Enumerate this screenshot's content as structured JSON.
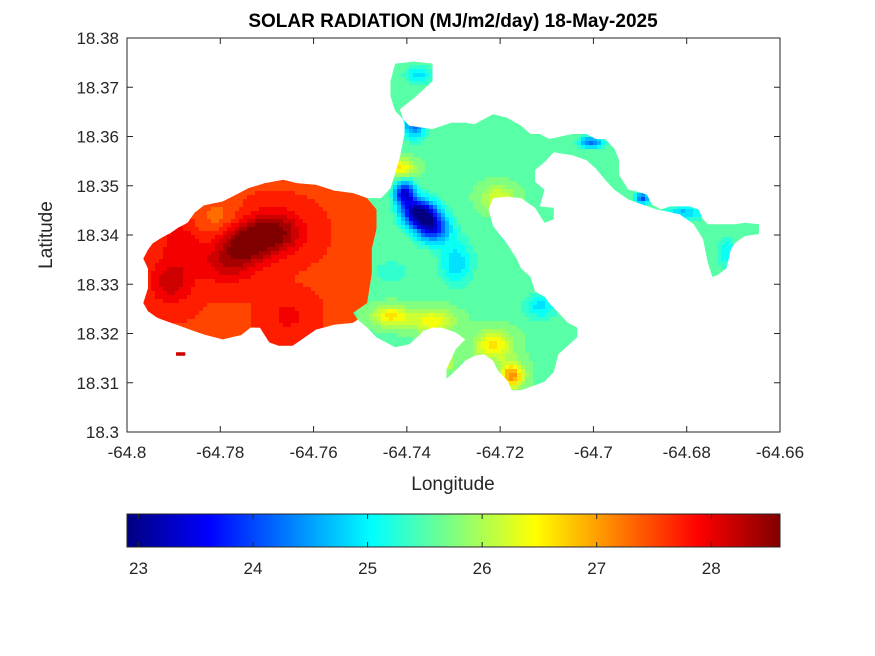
{
  "chart_data": {
    "type": "heatmap",
    "title": "SOLAR RADIATION (MJ/m2/day) 18-May-2025",
    "xlabel": "Longitude",
    "ylabel": "Latitude",
    "xlim": [
      -64.8,
      -64.66
    ],
    "ylim": [
      18.3,
      18.38
    ],
    "x_ticks": [
      -64.8,
      -64.78,
      -64.76,
      -64.74,
      -64.72,
      -64.7,
      -64.68,
      -64.66
    ],
    "x_tick_labels": [
      "-64.8",
      "-64.78",
      "-64.76",
      "-64.74",
      "-64.72",
      "-64.7",
      "-64.68",
      "-64.66"
    ],
    "y_ticks": [
      18.3,
      18.31,
      18.32,
      18.33,
      18.34,
      18.35,
      18.36,
      18.37,
      18.38
    ],
    "y_tick_labels": [
      "18.3",
      "18.31",
      "18.32",
      "18.33",
      "18.34",
      "18.35",
      "18.36",
      "18.37",
      "18.38"
    ],
    "colormap": "jet",
    "colorbar": {
      "range": [
        22.9,
        28.6
      ],
      "ticks": [
        23,
        24,
        25,
        26,
        27,
        28
      ],
      "tick_labels": [
        "23",
        "24",
        "25",
        "26",
        "27",
        "28"
      ],
      "placement": "bottom"
    },
    "grid": false,
    "regions": [
      {
        "name": "west",
        "polygon": [
          [
            -64.7955,
            18.337
          ],
          [
            -64.7945,
            18.3383
          ],
          [
            -64.7925,
            18.3395
          ],
          [
            -64.7905,
            18.3405
          ],
          [
            -64.789,
            18.3415
          ],
          [
            -64.787,
            18.3425
          ],
          [
            -64.7855,
            18.3445
          ],
          [
            -64.7835,
            18.346
          ],
          [
            -64.7795,
            18.3468
          ],
          [
            -64.777,
            18.348
          ],
          [
            -64.774,
            18.3495
          ],
          [
            -64.7705,
            18.3505
          ],
          [
            -64.7665,
            18.3512
          ],
          [
            -64.7635,
            18.3505
          ],
          [
            -64.7595,
            18.3502
          ],
          [
            -64.7555,
            18.349
          ],
          [
            -64.7515,
            18.3485
          ],
          [
            -64.7485,
            18.3475
          ],
          [
            -64.7465,
            18.3452
          ],
          [
            -64.7465,
            18.3412
          ],
          [
            -64.7475,
            18.3372
          ],
          [
            -64.7475,
            18.3322
          ],
          [
            -64.7485,
            18.3262
          ],
          [
            -64.7495,
            18.3235
          ],
          [
            -64.7515,
            18.3222
          ],
          [
            -64.7555,
            18.3218
          ],
          [
            -64.7595,
            18.3208
          ],
          [
            -64.7625,
            18.3188
          ],
          [
            -64.7645,
            18.3175
          ],
          [
            -64.7675,
            18.3175
          ],
          [
            -64.7695,
            18.3182
          ],
          [
            -64.7715,
            18.3212
          ],
          [
            -64.7735,
            18.3212
          ],
          [
            -64.7755,
            18.3197
          ],
          [
            -64.7795,
            18.3188
          ],
          [
            -64.7835,
            18.3198
          ],
          [
            -64.7865,
            18.3208
          ],
          [
            -64.7885,
            18.3215
          ],
          [
            -64.7915,
            18.3225
          ],
          [
            -64.7935,
            18.3232
          ],
          [
            -64.7955,
            18.3245
          ],
          [
            -64.7965,
            18.3262
          ],
          [
            -64.7955,
            18.3292
          ],
          [
            -64.7955,
            18.3332
          ],
          [
            -64.7965,
            18.3352
          ]
        ],
        "peaks": [
          [
            -64.7685,
            18.3405,
            28.6,
            0.006,
            0.0042
          ],
          [
            -64.7745,
            18.3385,
            28.5,
            0.0052,
            0.0038
          ],
          [
            -64.7905,
            18.3305,
            28.2,
            0.0045,
            0.0045
          ],
          [
            -64.7885,
            18.3385,
            28.0,
            0.004,
            0.004
          ],
          [
            -64.7655,
            18.3235,
            27.9,
            0.0045,
            0.004
          ],
          [
            -64.7785,
            18.3345,
            28.2,
            0.0062,
            0.0042
          ],
          [
            -64.7595,
            18.3465,
            27.6,
            0.0052,
            0.004
          ],
          [
            -64.7805,
            18.3435,
            27.3,
            0.0045,
            0.0038
          ]
        ],
        "base": 27.6
      },
      {
        "name": "southwest-islet",
        "polygon": [
          [
            -64.7895,
            18.3162
          ],
          [
            -64.7875,
            18.3162
          ],
          [
            -64.7875,
            18.3155
          ],
          [
            -64.7895,
            18.3155
          ]
        ],
        "peaks": [],
        "base": 28.2
      },
      {
        "name": "central",
        "polygon": [
          [
            -64.7485,
            18.3475
          ],
          [
            -64.7455,
            18.3475
          ],
          [
            -64.7435,
            18.3495
          ],
          [
            -64.7425,
            18.3525
          ],
          [
            -64.7415,
            18.3558
          ],
          [
            -64.7405,
            18.3605
          ],
          [
            -64.7405,
            18.3625
          ],
          [
            -64.7415,
            18.3655
          ],
          [
            -64.7385,
            18.3678
          ],
          [
            -64.7365,
            18.3695
          ],
          [
            -64.7345,
            18.3712
          ],
          [
            -64.7345,
            18.3748
          ],
          [
            -64.7385,
            18.3752
          ],
          [
            -64.7425,
            18.3748
          ],
          [
            -64.7435,
            18.3712
          ],
          [
            -64.7435,
            18.3682
          ],
          [
            -64.7425,
            18.3652
          ],
          [
            -64.7395,
            18.3622
          ],
          [
            -64.7345,
            18.3615
          ],
          [
            -64.7305,
            18.3628
          ],
          [
            -64.7275,
            18.3628
          ],
          [
            -64.7255,
            18.3625
          ],
          [
            -64.7215,
            18.3645
          ],
          [
            -64.7185,
            18.3638
          ],
          [
            -64.7155,
            18.3622
          ],
          [
            -64.7135,
            18.3605
          ],
          [
            -64.7115,
            18.3605
          ],
          [
            -64.7095,
            18.3595
          ],
          [
            -64.7045,
            18.3605
          ],
          [
            -64.7015,
            18.3605
          ],
          [
            -64.6995,
            18.3595
          ],
          [
            -64.6975,
            18.3595
          ],
          [
            -64.6955,
            18.3575
          ],
          [
            -64.6945,
            18.3552
          ],
          [
            -64.6945,
            18.3522
          ],
          [
            -64.6925,
            18.3492
          ],
          [
            -64.6905,
            18.3488
          ],
          [
            -64.6885,
            18.3482
          ],
          [
            -64.6875,
            18.3462
          ],
          [
            -64.6855,
            18.3452
          ],
          [
            -64.6835,
            18.3458
          ],
          [
            -64.6795,
            18.3458
          ],
          [
            -64.6775,
            18.3452
          ],
          [
            -64.6765,
            18.3432
          ],
          [
            -64.6755,
            18.3422
          ],
          [
            -64.6735,
            18.3422
          ],
          [
            -64.6695,
            18.3422
          ],
          [
            -64.6675,
            18.3425
          ],
          [
            -64.6645,
            18.3422
          ],
          [
            -64.6645,
            18.3402
          ],
          [
            -64.6675,
            18.3398
          ],
          [
            -64.6695,
            18.3385
          ],
          [
            -64.6705,
            18.3372
          ],
          [
            -64.6715,
            18.3332
          ],
          [
            -64.6735,
            18.3318
          ],
          [
            -64.6745,
            18.3315
          ],
          [
            -64.6755,
            18.3345
          ],
          [
            -64.6765,
            18.3392
          ],
          [
            -64.6785,
            18.3422
          ],
          [
            -64.6815,
            18.3442
          ],
          [
            -64.6865,
            18.3452
          ],
          [
            -64.6895,
            18.3462
          ],
          [
            -64.6925,
            18.3472
          ],
          [
            -64.6955,
            18.3492
          ],
          [
            -64.6975,
            18.3512
          ],
          [
            -64.6995,
            18.3535
          ],
          [
            -64.7015,
            18.3552
          ],
          [
            -64.7045,
            18.3562
          ],
          [
            -64.7085,
            18.3568
          ],
          [
            -64.7105,
            18.3548
          ],
          [
            -64.7125,
            18.3532
          ],
          [
            -64.7125,
            18.3508
          ],
          [
            -64.7105,
            18.3492
          ],
          [
            -64.7115,
            18.3458
          ],
          [
            -64.7085,
            18.3455
          ],
          [
            -64.7085,
            18.3432
          ],
          [
            -64.7105,
            18.3425
          ],
          [
            -64.7125,
            18.3455
          ],
          [
            -64.7155,
            18.3475
          ],
          [
            -64.7185,
            18.3478
          ],
          [
            -64.7215,
            18.3475
          ],
          [
            -64.7225,
            18.3452
          ],
          [
            -64.7215,
            18.3418
          ],
          [
            -64.7185,
            18.3382
          ],
          [
            -64.7165,
            18.3352
          ],
          [
            -64.7155,
            18.3332
          ],
          [
            -64.7135,
            18.3315
          ],
          [
            -64.7125,
            18.3285
          ],
          [
            -64.7105,
            18.3275
          ],
          [
            -64.7095,
            18.3262
          ],
          [
            -64.7075,
            18.3242
          ],
          [
            -64.7055,
            18.3222
          ],
          [
            -64.7035,
            18.3212
          ],
          [
            -64.7035,
            18.3192
          ],
          [
            -64.7055,
            18.3175
          ],
          [
            -64.7075,
            18.3158
          ],
          [
            -64.7085,
            18.3122
          ],
          [
            -64.7105,
            18.3102
          ],
          [
            -64.7125,
            18.3095
          ],
          [
            -64.7155,
            18.3085
          ],
          [
            -64.7175,
            18.3085
          ],
          [
            -64.7185,
            18.3105
          ],
          [
            -64.7205,
            18.3125
          ],
          [
            -64.7215,
            18.3145
          ],
          [
            -64.7235,
            18.3158
          ],
          [
            -64.7255,
            18.3155
          ],
          [
            -64.7275,
            18.3145
          ],
          [
            -64.7295,
            18.3125
          ],
          [
            -64.7315,
            18.3108
          ],
          [
            -64.7315,
            18.3128
          ],
          [
            -64.7305,
            18.3148
          ],
          [
            -64.7295,
            18.3168
          ],
          [
            -64.7275,
            18.3188
          ],
          [
            -64.7295,
            18.3202
          ],
          [
            -64.7325,
            18.3212
          ],
          [
            -64.7345,
            18.3212
          ],
          [
            -64.7365,
            18.3205
          ],
          [
            -64.7375,
            18.3195
          ],
          [
            -64.7395,
            18.3178
          ],
          [
            -64.7425,
            18.3172
          ],
          [
            -64.7445,
            18.3182
          ],
          [
            -64.7465,
            18.3192
          ],
          [
            -64.7485,
            18.3212
          ],
          [
            -64.7505,
            18.3228
          ],
          [
            -64.7515,
            18.3242
          ],
          [
            -64.7485,
            18.3262
          ],
          [
            -64.7475,
            18.3322
          ],
          [
            -64.7475,
            18.3372
          ],
          [
            -64.7465,
            18.3412
          ],
          [
            -64.7465,
            18.3452
          ]
        ],
        "peaks": [
          [
            -64.7375,
            18.3445,
            22.9,
            0.0035,
            0.0028
          ],
          [
            -64.7405,
            18.3485,
            23.4,
            0.0022,
            0.0025
          ],
          [
            -64.7345,
            18.3415,
            23.6,
            0.0035,
            0.003
          ],
          [
            -64.7295,
            18.3345,
            24.8,
            0.0035,
            0.0045
          ],
          [
            -64.7115,
            18.3255,
            24.9,
            0.0035,
            0.0025
          ],
          [
            -64.7085,
            18.3315,
            25.2,
            0.0035,
            0.003
          ],
          [
            -64.7435,
            18.3325,
            25.2,
            0.0035,
            0.0022
          ],
          [
            -64.7385,
            18.3625,
            24.2,
            0.0025,
            0.0028
          ],
          [
            -64.7375,
            18.3725,
            24.9,
            0.003,
            0.0018
          ],
          [
            -64.7005,
            18.3588,
            24.2,
            0.0025,
            0.0012
          ],
          [
            -64.6895,
            18.3475,
            24.0,
            0.0015,
            0.0012
          ],
          [
            -64.6715,
            18.3365,
            25.0,
            0.002,
            0.003
          ],
          [
            -64.6805,
            18.3445,
            24.7,
            0.004,
            0.0015
          ],
          [
            -64.7265,
            18.3575,
            25.6,
            0.0032,
            0.003
          ],
          [
            -64.7205,
            18.3475,
            26.3,
            0.0035,
            0.0025
          ],
          [
            -64.7215,
            18.3175,
            26.6,
            0.004,
            0.003
          ],
          [
            -64.7345,
            18.3225,
            26.5,
            0.0045,
            0.0025
          ],
          [
            -64.7435,
            18.3235,
            26.6,
            0.004,
            0.002
          ],
          [
            -64.7415,
            18.3535,
            26.6,
            0.003,
            0.002
          ],
          [
            -64.7175,
            18.3115,
            27.1,
            0.0025,
            0.0025
          ],
          [
            -64.7335,
            18.3145,
            27.4,
            0.0025,
            0.0018
          ],
          [
            -64.7185,
            18.3395,
            25.4,
            0.003,
            0.003
          ]
        ],
        "base": 25.6
      }
    ]
  }
}
